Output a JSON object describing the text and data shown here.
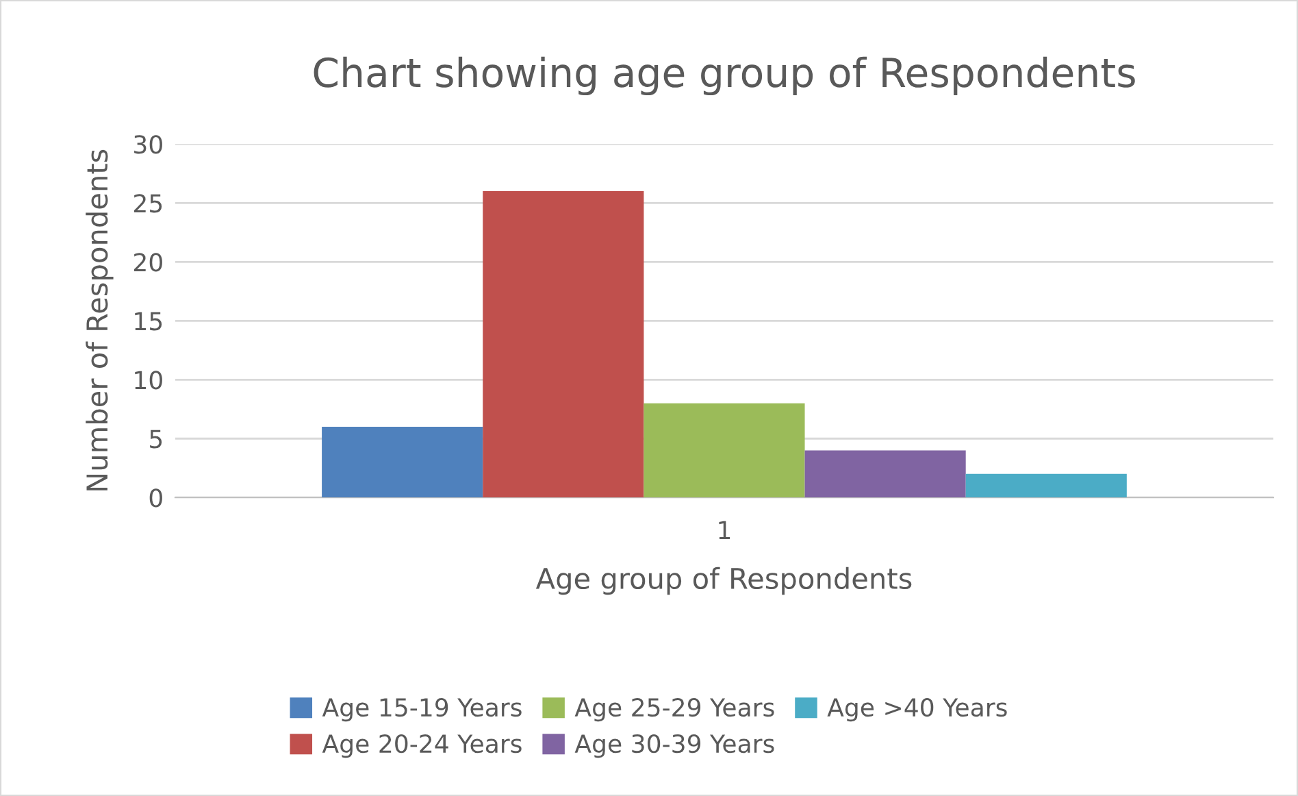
{
  "chart_data": {
    "type": "bar",
    "title": "Chart showing age group of Respondents",
    "xlabel": "Age group of Respondents",
    "ylabel": "Number of Respondents",
    "categories": [
      "1"
    ],
    "series": [
      {
        "name": "Age 15-19 Years",
        "color": "#4f81bd",
        "values": [
          6
        ]
      },
      {
        "name": "Age 20-24 Years",
        "color": "#c0504d",
        "values": [
          26
        ]
      },
      {
        "name": "Age 25-29 Years",
        "color": "#9bbb59",
        "values": [
          8
        ]
      },
      {
        "name": "Age 30-39 Years",
        "color": "#8064a2",
        "values": [
          4
        ]
      },
      {
        "name": "Age >40 Years",
        "color": "#4bacc6",
        "values": [
          2
        ]
      }
    ],
    "ylim": [
      0,
      30
    ],
    "yticks": [
      0,
      5,
      10,
      15,
      20,
      25,
      30
    ],
    "grid": "y",
    "legend": "bottom"
  }
}
